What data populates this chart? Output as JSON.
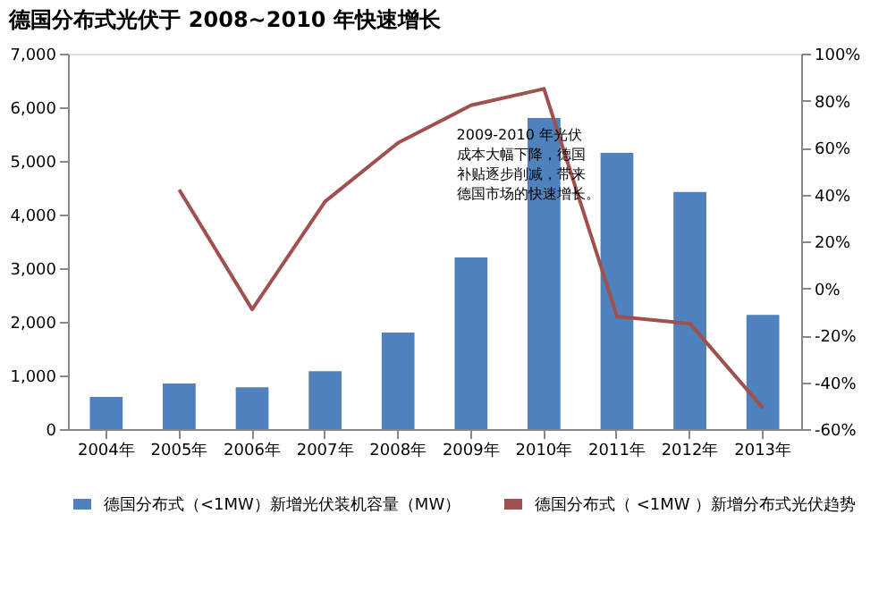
{
  "chart_data": {
    "type": "bar",
    "title": "德国分布式光伏于 2008~2010 年快速增长",
    "categories": [
      "2004年",
      "2005年",
      "2006年",
      "2007年",
      "2008年",
      "2009年",
      "2010年",
      "2011年",
      "2012年",
      "2013年"
    ],
    "series": [
      {
        "name": "德国分布式（<1MW）新增光伏装机容量（MW）",
        "color": "#4f81bd",
        "values": [
          600,
          850,
          780,
          1080,
          1800,
          3200,
          5800,
          5150,
          4420,
          2130
        ]
      },
      {
        "name": "德国分布式（ <1MW ）新增分布式光伏趋势",
        "color": "#a0504e",
        "type": "line",
        "axis": "y2",
        "values": [
          null,
          42,
          -9,
          37,
          62,
          78,
          85,
          -12,
          -15,
          -51
        ]
      }
    ],
    "ylim": [
      0,
      7000
    ],
    "yticks": [
      {
        "value": 0,
        "label": "0"
      },
      {
        "value": 1000,
        "label": "1,000"
      },
      {
        "value": 2000,
        "label": "2,000"
      },
      {
        "value": 3000,
        "label": "3,000"
      },
      {
        "value": 4000,
        "label": "4,000"
      },
      {
        "value": 5000,
        "label": "5,000"
      },
      {
        "value": 6000,
        "label": "6,000"
      },
      {
        "value": 7000,
        "label": "7,000"
      }
    ],
    "y2lim": [
      -60,
      100
    ],
    "y2ticks": [
      {
        "value": -60,
        "label": "-60%"
      },
      {
        "value": -40,
        "label": "-40%"
      },
      {
        "value": -20,
        "label": "-20%"
      },
      {
        "value": 0,
        "label": "0%"
      },
      {
        "value": 20,
        "label": "20%"
      },
      {
        "value": 40,
        "label": "40%"
      },
      {
        "value": 60,
        "label": "60%"
      },
      {
        "value": 80,
        "label": "80%"
      },
      {
        "value": 100,
        "label": "100%"
      }
    ],
    "annotations": [
      "2009-2010 年光伏成本大幅下降，德国补贴逐步削减，带来德国市场的快速增长。"
    ],
    "grid": false,
    "legend": "bottom"
  }
}
